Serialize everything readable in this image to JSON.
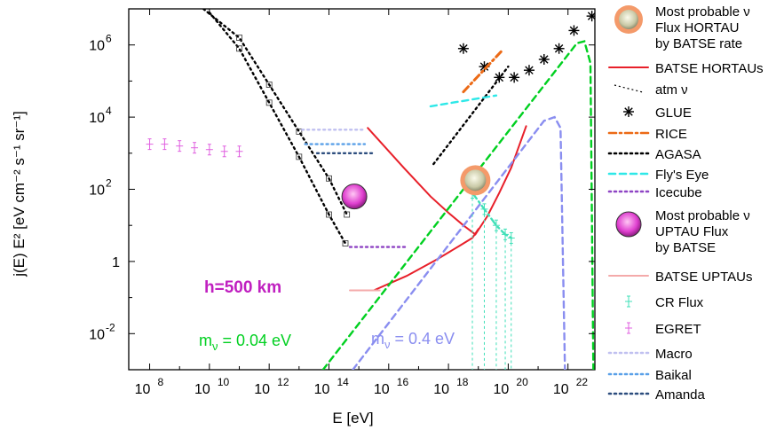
{
  "chart_data": {
    "type": "line",
    "title": "",
    "xlabel": "E [eV]",
    "ylabel": "j(E) E² [eV cm⁻² s⁻¹ sr⁻¹]",
    "xscale": "log",
    "yscale": "log",
    "xlim_log10": [
      7.3,
      22.9
    ],
    "ylim_log10": [
      -3.0,
      7.0
    ],
    "x_ticks": [
      {
        "mant": "10",
        "exp": "8",
        "log": 8
      },
      {
        "mant": "10",
        "exp": "10",
        "log": 10
      },
      {
        "mant": "10",
        "exp": "12",
        "log": 12
      },
      {
        "mant": "10",
        "exp": "14",
        "log": 14
      },
      {
        "mant": "10",
        "exp": "16",
        "log": 16
      },
      {
        "mant": "10",
        "exp": "18",
        "log": 18
      },
      {
        "mant": "10",
        "exp": "20",
        "log": 20
      },
      {
        "mant": "10",
        "exp": "22",
        "log": 22
      }
    ],
    "y_ticks": [
      {
        "mant": "10",
        "exp": "-2",
        "log": -2
      },
      {
        "mant": "1",
        "exp": "",
        "log": 0
      },
      {
        "mant": "10",
        "exp": "2",
        "log": 2
      },
      {
        "mant": "10",
        "exp": "4",
        "log": 4
      },
      {
        "mant": "10",
        "exp": "6",
        "log": 6
      }
    ],
    "annotations": {
      "h": "h=500 km",
      "m1_prefix": "m",
      "m1_sub": "ν",
      "m1_value": " = 0.04 eV",
      "m2_prefix": "m",
      "m2_sub": "ν",
      "m2_value": " = 0.4 eV"
    },
    "colors": {
      "batse": "#e8202a",
      "batse_up": "#f4aaaa",
      "glue": "#000000",
      "rice": "#ec6a16",
      "agasa": "#000000",
      "flys_eye": "#2ee8e8",
      "icecube": "#8e44c4",
      "cr": "#40e0b8",
      "egret": "#e060e0",
      "macro": "#c0c0f0",
      "baikal": "#5aa0e8",
      "amanda": "#2c4d7e",
      "nu04": "#00d020",
      "nu4": "#8a8ef0",
      "marker_hortau": "#d8d8c0",
      "marker_hortau_ring": "#f49a6a",
      "marker_uptau": "#e040d0"
    },
    "series": [
      {
        "name": "BATSE HORTAUs",
        "style": "solid",
        "color_key": "batse",
        "x": [
          15.3,
          16.5,
          17.4,
          18.0,
          18.5,
          18.9,
          19.3,
          19.7,
          20.1,
          20.6
        ],
        "y": [
          3.7,
          2.6,
          1.8,
          1.35,
          1.0,
          0.75,
          1.25,
          1.9,
          2.6,
          3.75
        ]
      },
      {
        "name": "BATSE HORTAUs (lower branch)",
        "style": "solid",
        "color_key": "batse",
        "x": [
          15.5,
          16.6,
          17.6,
          18.4,
          18.8,
          19.0
        ],
        "y": [
          -0.8,
          -0.4,
          0.05,
          0.45,
          0.65,
          0.9
        ]
      },
      {
        "name": "BATSE UPTAUs",
        "style": "solid",
        "color_key": "batse_up",
        "x": [
          14.7,
          15.7
        ],
        "y": [
          -0.8,
          -0.8
        ]
      },
      {
        "name": "atm ν (1)",
        "style": "dotted",
        "color_key": "glue",
        "x": [
          10.0,
          11.0,
          12.0,
          13.0,
          14.0,
          14.55
        ],
        "y": [
          6.9,
          5.9,
          4.4,
          2.9,
          1.3,
          0.5
        ]
      },
      {
        "name": "atm ν (2)",
        "style": "dotted",
        "color_key": "glue",
        "x": [
          9.8,
          11.0,
          12.0,
          13.0,
          14.0,
          14.6
        ],
        "y": [
          7.0,
          6.2,
          4.9,
          3.6,
          2.3,
          1.3
        ]
      },
      {
        "name": "GLUE",
        "style": "markers",
        "color_key": "glue",
        "x": [
          18.5,
          19.2,
          19.7,
          20.2,
          20.7,
          21.2,
          21.7,
          22.2,
          22.8
        ],
        "y": [
          5.9,
          5.4,
          5.1,
          5.1,
          5.3,
          5.6,
          5.9,
          6.4,
          6.8
        ]
      },
      {
        "name": "RICE",
        "style": "dash-dot",
        "color_key": "rice",
        "x": [
          18.5,
          19.8
        ],
        "y": [
          4.7,
          5.85
        ]
      },
      {
        "name": "AGASA",
        "style": "dotted",
        "color_key": "agasa",
        "x": [
          17.5,
          20.0
        ],
        "y": [
          2.7,
          5.4
        ]
      },
      {
        "name": "Fly's Eye",
        "style": "dashed",
        "color_key": "flys_eye",
        "x": [
          17.4,
          19.6
        ],
        "y": [
          4.3,
          4.6
        ]
      },
      {
        "name": "Icecube",
        "style": "dotted",
        "color_key": "icecube",
        "x": [
          14.7,
          16.6
        ],
        "y": [
          0.4,
          0.4
        ]
      },
      {
        "name": "Macro",
        "style": "dotted",
        "color_key": "macro",
        "x": [
          13.1,
          15.2
        ],
        "y": [
          3.65,
          3.65
        ]
      },
      {
        "name": "Baikal",
        "style": "dotted",
        "color_key": "baikal",
        "x": [
          13.2,
          15.2
        ],
        "y": [
          3.25,
          3.25
        ]
      },
      {
        "name": "Amanda",
        "style": "dotted",
        "color_key": "amanda",
        "x": [
          13.6,
          15.5
        ],
        "y": [
          3.0,
          3.0
        ]
      },
      {
        "name": "m_nu = 0.04 eV",
        "style": "dashed",
        "color_key": "nu04",
        "x": [
          13.8,
          22.3,
          22.55,
          22.75,
          22.85
        ],
        "y": [
          -3.0,
          6.05,
          6.1,
          5.5,
          -3.0
        ]
      },
      {
        "name": "m_nu = 0.4 eV",
        "style": "dashed",
        "color_key": "nu4",
        "x": [
          14.8,
          21.2,
          21.55,
          21.75,
          21.9
        ],
        "y": [
          -3.0,
          3.9,
          4.0,
          3.7,
          -3.0
        ]
      },
      {
        "name": "CR Flux",
        "style": "dash-dot",
        "color_key": "cr",
        "x": [
          18.8,
          19.2,
          19.6,
          19.9,
          20.1
        ],
        "y": [
          1.9,
          1.45,
          1.0,
          0.75,
          0.65
        ]
      },
      {
        "name": "EGRET",
        "style": "markers",
        "color_key": "egret",
        "x": [
          8.0,
          8.5,
          9.0,
          9.5,
          10.0,
          10.5,
          11.0
        ],
        "y": [
          3.25,
          3.25,
          3.2,
          3.15,
          3.1,
          3.05,
          3.05
        ]
      }
    ],
    "markers": [
      {
        "name": "Most probable ν Flux HORTAU by BATSE rate",
        "x": 18.9,
        "y": 2.25,
        "color_key": "marker_hortau"
      },
      {
        "name": "Most probable ν UPTAU Flux by BATSE",
        "x": 14.85,
        "y": 1.8,
        "color_key": "marker_uptau"
      }
    ],
    "legend": {
      "position": "right",
      "entries": [
        {
          "kind": "hortau-marker",
          "lines": [
            "Most probable ν",
            "Flux HORTAU",
            "by BATSE rate"
          ],
          "color_key": "marker_hortau"
        },
        {
          "kind": "solid",
          "lines": [
            "BATSE  HORTAUs"
          ],
          "color_key": "batse"
        },
        {
          "kind": "atm",
          "lines": [
            "atm ν"
          ],
          "color_key": "glue"
        },
        {
          "kind": "star",
          "lines": [
            "GLUE"
          ],
          "color_key": "glue"
        },
        {
          "kind": "dashdot",
          "lines": [
            "RICE"
          ],
          "color_key": "rice"
        },
        {
          "kind": "dotted",
          "lines": [
            "AGASA"
          ],
          "color_key": "agasa"
        },
        {
          "kind": "dashed",
          "lines": [
            "Fly's Eye"
          ],
          "color_key": "flys_eye"
        },
        {
          "kind": "dotted",
          "lines": [
            "Icecube"
          ],
          "color_key": "icecube"
        },
        {
          "kind": "uptau-marker",
          "lines": [
            "Most probable ν",
            "UPTAU Flux",
            "by BATSE"
          ],
          "color_key": "marker_uptau"
        },
        {
          "kind": "solid",
          "lines": [
            "BATSE  UPTAUs"
          ],
          "color_key": "batse_up"
        },
        {
          "kind": "errcross",
          "lines": [
            "CR Flux"
          ],
          "color_key": "cr"
        },
        {
          "kind": "errcross",
          "lines": [
            "EGRET"
          ],
          "color_key": "egret"
        },
        {
          "kind": "dotted",
          "lines": [
            "Macro"
          ],
          "color_key": "macro"
        },
        {
          "kind": "dotted",
          "lines": [
            "Baikal"
          ],
          "color_key": "baikal"
        },
        {
          "kind": "dotted",
          "lines": [
            "Amanda"
          ],
          "color_key": "amanda"
        }
      ]
    }
  }
}
